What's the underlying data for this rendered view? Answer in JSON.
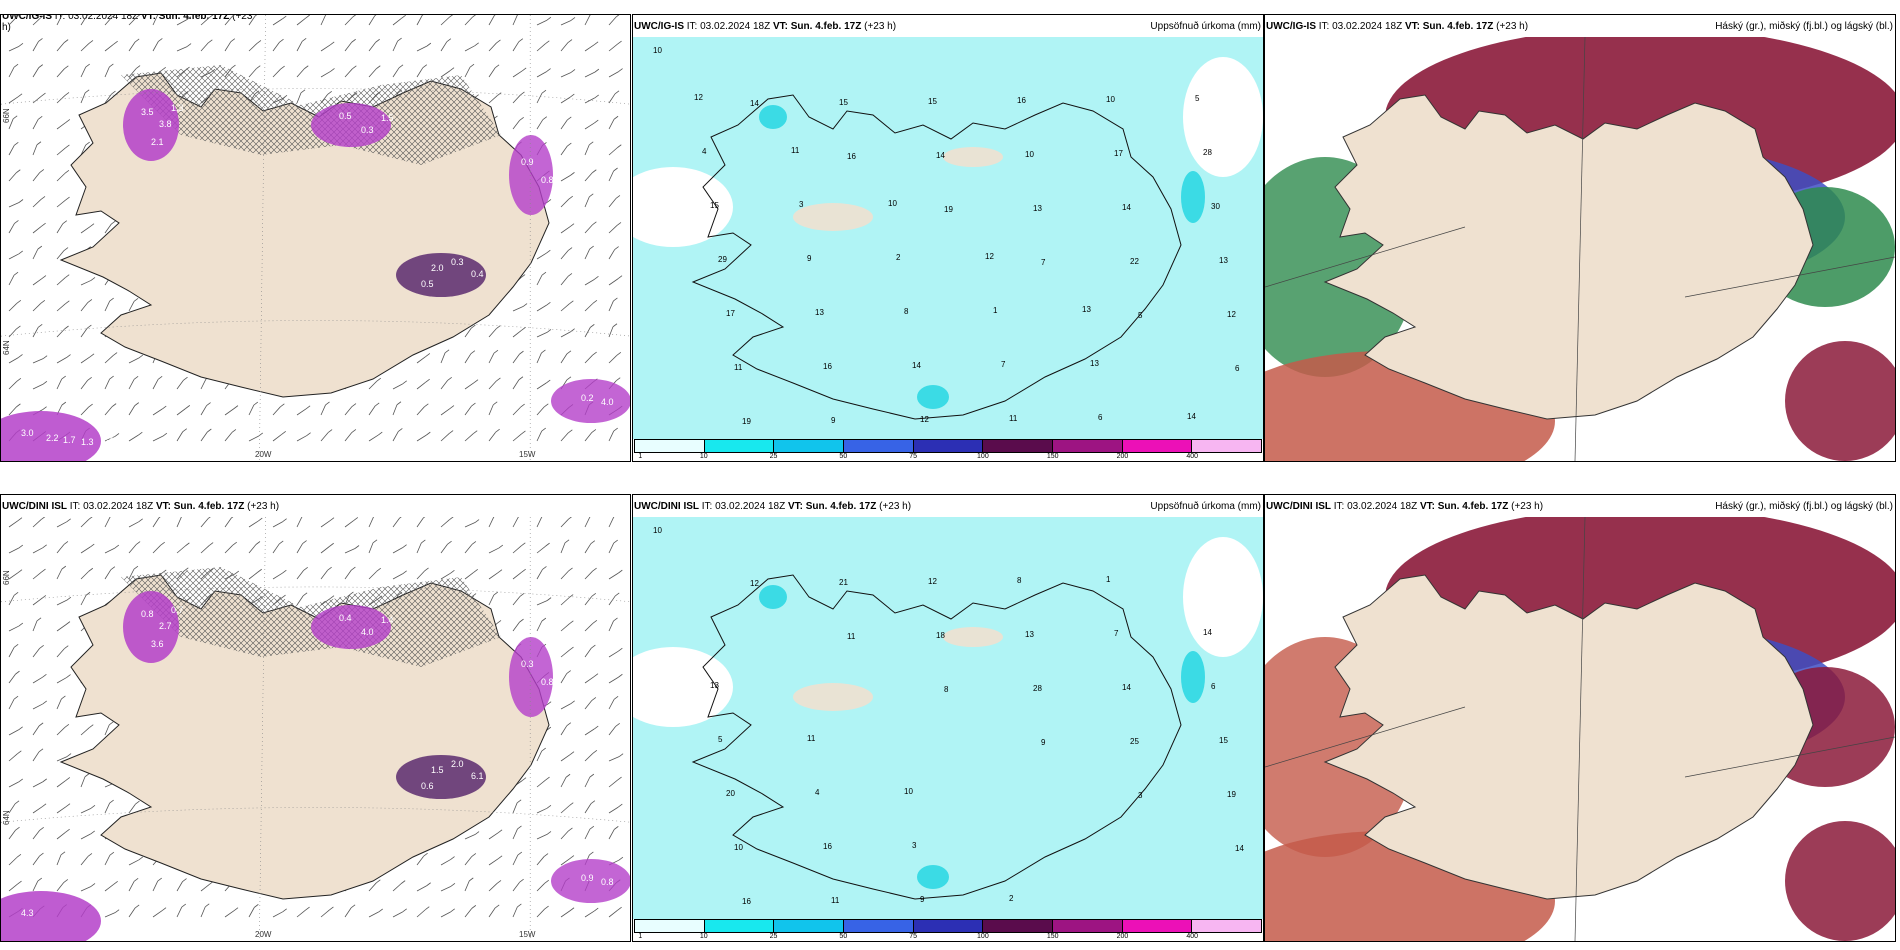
{
  "colors": {
    "land": "#efe1d0",
    "sea": "#ffffff",
    "precip_sea": "#b0f4f5",
    "cyan": "#2fd8e3",
    "magenta": "#b43fc9",
    "purple": "#5b2a6e",
    "maroon": "#8b1a3a",
    "blue": "#3e4ec3",
    "green": "#2e8b4e",
    "salmon": "#c45a4a"
  },
  "panels": {
    "r1c1": {
      "model": "UWC/IG-IS",
      "it": "IT: 03.02.2024 18Z",
      "vt": "VT: Sun. 4.feb. 17Z",
      "lead": "(+23",
      "lead_cont": "h)",
      "lat_labels": [
        "66N",
        "64N"
      ],
      "lon_labels": [
        "20W",
        "15W"
      ],
      "values": [
        "3.5",
        "3.8",
        "2.1",
        "1.3",
        "0.5",
        "0.3",
        "1.5",
        "0.9",
        "0.8",
        "2.0",
        "0.3",
        "0.4",
        "0.5",
        "0.2",
        "4.0",
        "3.0",
        "2.2",
        "1.7",
        "1.3",
        "0.2"
      ]
    },
    "r1c2": {
      "model": "UWC/IG-IS",
      "it": "IT: 03.02.2024 18Z",
      "vt": "VT: Sun. 4.feb. 17Z",
      "lead": "(+23 h)",
      "right_title": "Uppsöfnuð úrkoma (mm)",
      "numbers": [
        "10",
        "14",
        "16",
        "19",
        "7",
        "5",
        "6",
        "19",
        "15",
        "14",
        "13",
        "22",
        "12",
        "11",
        "9",
        "15",
        "10",
        "14",
        "13",
        "17",
        "16",
        "12",
        "16",
        "17",
        "30",
        "29",
        "13",
        "14",
        "11",
        "10",
        "28",
        "15",
        "9",
        "8",
        "7",
        "6",
        "5",
        "4",
        "3",
        "2",
        "1",
        "13",
        "14",
        "12",
        "11",
        "10",
        "12",
        "13"
      ]
    },
    "r1c3": {
      "model": "UWC/IG-IS",
      "it": "IT: 03.02.2024 18Z",
      "vt": "VT: Sun. 4.feb. 17Z",
      "lead": "(+23 h)",
      "right_title": "Háský (gr.), miðský (fj.bl.) og lágský (bl.)"
    },
    "r2c1": {
      "model": "UWC/DINI ISL",
      "it": "IT: 03.02.2024 18Z",
      "vt": "VT: Sun. 4.feb. 17Z",
      "lead": "(+23 h)",
      "lat_labels": [
        "66N",
        "64N"
      ],
      "lon_labels": [
        "20W",
        "15W"
      ],
      "values": [
        "0.8",
        "2.7",
        "3.6",
        "0.7",
        "0.4",
        "4.0",
        "1.4",
        "0.3",
        "0.8",
        "1.5",
        "2.0",
        "6.1",
        "0.6",
        "0.9",
        "0.8",
        "4.3"
      ]
    },
    "r2c2": {
      "model": "UWC/DINI ISL",
      "it": "IT: 03.02.2024 18Z",
      "vt": "VT: Sun. 4.feb. 17Z",
      "lead": "(+23 h)",
      "right_title": "Uppsöfnuð úrkoma (mm)",
      "numbers": [
        "10",
        "12",
        "11",
        "8",
        "9",
        "3",
        "14",
        "16",
        "21",
        "18",
        "28",
        "25",
        "19",
        "10",
        "11",
        "12",
        "13",
        "14",
        "15",
        "20",
        "16",
        "9",
        "8",
        "7",
        "6",
        "5",
        "4",
        "3",
        "2",
        "1",
        "14",
        "13",
        "11",
        "10"
      ]
    },
    "r2c3": {
      "model": "UWC/DINI ISL",
      "it": "IT: 03.02.2024 18Z",
      "vt": "VT: Sun. 4.feb. 17Z",
      "lead": "(+23 h)",
      "right_title": "Háský (gr.), miðský (fj.bl.) og lágský (bl.)"
    }
  },
  "colorbar": {
    "labels": [
      "1",
      "10",
      "25",
      "50",
      "75",
      "100",
      "150",
      "200",
      "400"
    ],
    "colors": [
      "#e8feff",
      "#18e8ee",
      "#11c4ec",
      "#3763e6",
      "#2c2fb4",
      "#5a0c4c",
      "#9d1482",
      "#ec10b7",
      "#f7b6f2"
    ]
  }
}
